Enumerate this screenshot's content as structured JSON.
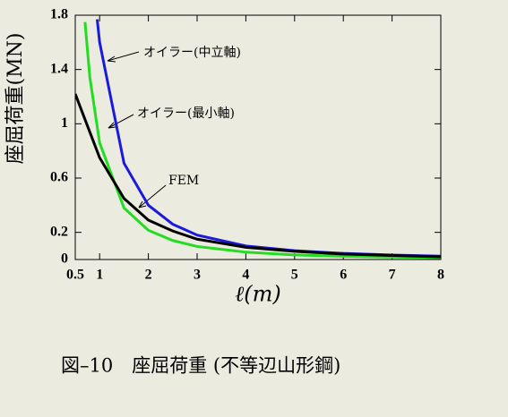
{
  "chart_data": {
    "type": "line",
    "ylabel": "座屈荷重(MN)",
    "xlabel": "ℓ(m)",
    "caption": "図–10　座屈荷重 (不等辺山形鋼)",
    "xlim": [
      0.5,
      8
    ],
    "ylim": [
      0,
      1.8
    ],
    "xticks": [
      0.5,
      1,
      2,
      3,
      4,
      5,
      6,
      7,
      8
    ],
    "yticks": [
      0,
      0.2,
      0.6,
      1,
      1.4,
      1.8
    ],
    "series": [
      {
        "name": "オイラー(中立軸)",
        "color": "#1a1adb",
        "x": [
          0.95,
          1,
          1.5,
          2,
          2.5,
          3,
          4,
          5,
          6,
          7,
          8
        ],
        "values": [
          1.77,
          1.6,
          0.71,
          0.4,
          0.26,
          0.18,
          0.1,
          0.065,
          0.045,
          0.033,
          0.025
        ]
      },
      {
        "name": "オイラー(最小軸)",
        "color": "#22dd22",
        "x": [
          0.7,
          0.8,
          1,
          1.5,
          2,
          2.5,
          3,
          4,
          5,
          6,
          7,
          8
        ],
        "values": [
          1.75,
          1.34,
          0.86,
          0.38,
          0.215,
          0.14,
          0.096,
          0.054,
          0.034,
          0.024,
          0.018,
          0.013
        ]
      },
      {
        "name": "FEM",
        "color": "#000000",
        "x": [
          0.5,
          1,
          1.5,
          2,
          2.5,
          3,
          4,
          5,
          6,
          7,
          8
        ],
        "values": [
          1.22,
          0.75,
          0.45,
          0.29,
          0.21,
          0.15,
          0.09,
          0.06,
          0.04,
          0.03,
          0.02
        ]
      }
    ]
  }
}
